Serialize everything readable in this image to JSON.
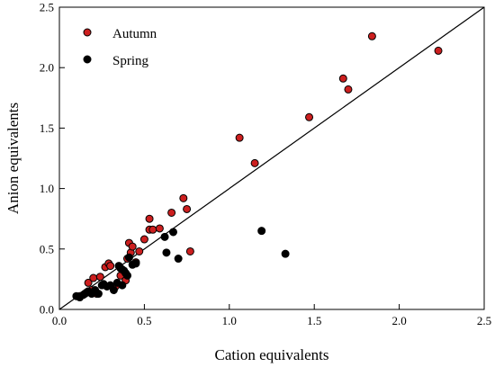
{
  "chart_data": {
    "type": "scatter",
    "title": "",
    "xlabel": "Cation equivalents",
    "ylabel": "Anion equivalents",
    "xlim": [
      0.0,
      2.5
    ],
    "ylim": [
      0.0,
      2.5
    ],
    "xticks": [
      "0.0",
      "0.5",
      "1.0",
      "1.5",
      "2.0",
      "2.5"
    ],
    "yticks": [
      "0.0",
      "0.5",
      "1.0",
      "1.5",
      "2.0",
      "2.5"
    ],
    "grid": false,
    "legend_position": "top-left",
    "reference_line": {
      "x": [
        0,
        2.5
      ],
      "y": [
        0,
        2.5
      ],
      "type": "1:1"
    },
    "series": [
      {
        "name": "Autumn",
        "color": "#cc1f1f",
        "x": [
          0.12,
          0.15,
          0.17,
          0.19,
          0.2,
          0.22,
          0.24,
          0.27,
          0.29,
          0.3,
          0.33,
          0.36,
          0.37,
          0.39,
          0.4,
          0.41,
          0.42,
          0.43,
          0.45,
          0.47,
          0.5,
          0.53,
          0.53,
          0.55,
          0.59,
          0.66,
          0.73,
          0.75,
          0.77,
          1.06,
          1.15,
          1.47,
          1.67,
          1.7,
          1.84,
          2.23
        ],
        "y": [
          0.11,
          0.13,
          0.22,
          0.16,
          0.26,
          0.13,
          0.27,
          0.35,
          0.38,
          0.36,
          0.19,
          0.28,
          0.33,
          0.24,
          0.42,
          0.55,
          0.47,
          0.52,
          0.39,
          0.48,
          0.58,
          0.66,
          0.75,
          0.66,
          0.67,
          0.8,
          0.92,
          0.83,
          0.48,
          1.42,
          1.21,
          1.59,
          1.91,
          1.82,
          2.26,
          2.14
        ]
      },
      {
        "name": "Spring",
        "color": "#000000",
        "x": [
          0.1,
          0.12,
          0.14,
          0.16,
          0.17,
          0.19,
          0.21,
          0.23,
          0.25,
          0.26,
          0.28,
          0.3,
          0.32,
          0.34,
          0.35,
          0.36,
          0.37,
          0.38,
          0.39,
          0.4,
          0.41,
          0.43,
          0.45,
          0.62,
          0.63,
          0.67,
          0.7,
          1.19,
          1.33
        ],
        "y": [
          0.11,
          0.1,
          0.12,
          0.14,
          0.15,
          0.13,
          0.16,
          0.13,
          0.2,
          0.21,
          0.19,
          0.2,
          0.16,
          0.22,
          0.36,
          0.34,
          0.2,
          0.32,
          0.3,
          0.28,
          0.43,
          0.37,
          0.38,
          0.6,
          0.47,
          0.64,
          0.42,
          0.65,
          0.46
        ]
      }
    ]
  }
}
